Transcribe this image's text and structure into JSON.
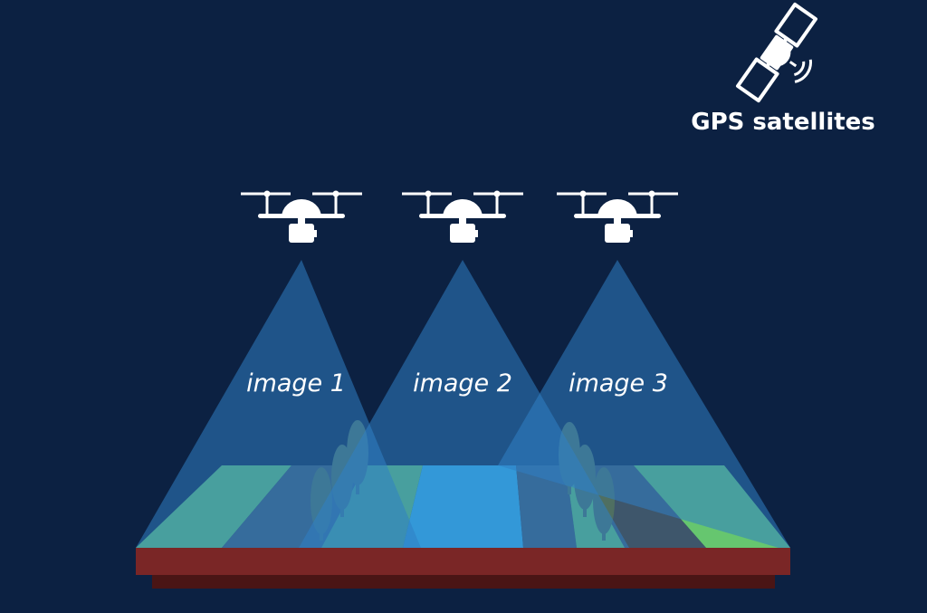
{
  "satellite": {
    "label": "GPS satellites",
    "icon": "satellite-icon"
  },
  "drones": [
    {
      "icon": "drone-icon",
      "image_label": "image 1"
    },
    {
      "icon": "drone-icon",
      "image_label": "image 2"
    },
    {
      "icon": "drone-icon",
      "image_label": "image 3"
    }
  ],
  "colors": {
    "background": "#0c2142",
    "cone": "#2f7fc4",
    "grass": "#66c66f",
    "road": "#3e566b",
    "river": "#38b7ef",
    "soil": "#7a2626",
    "soil_shadow": "#4a1515",
    "tree": "#4f6f61",
    "icon": "#ffffff"
  }
}
